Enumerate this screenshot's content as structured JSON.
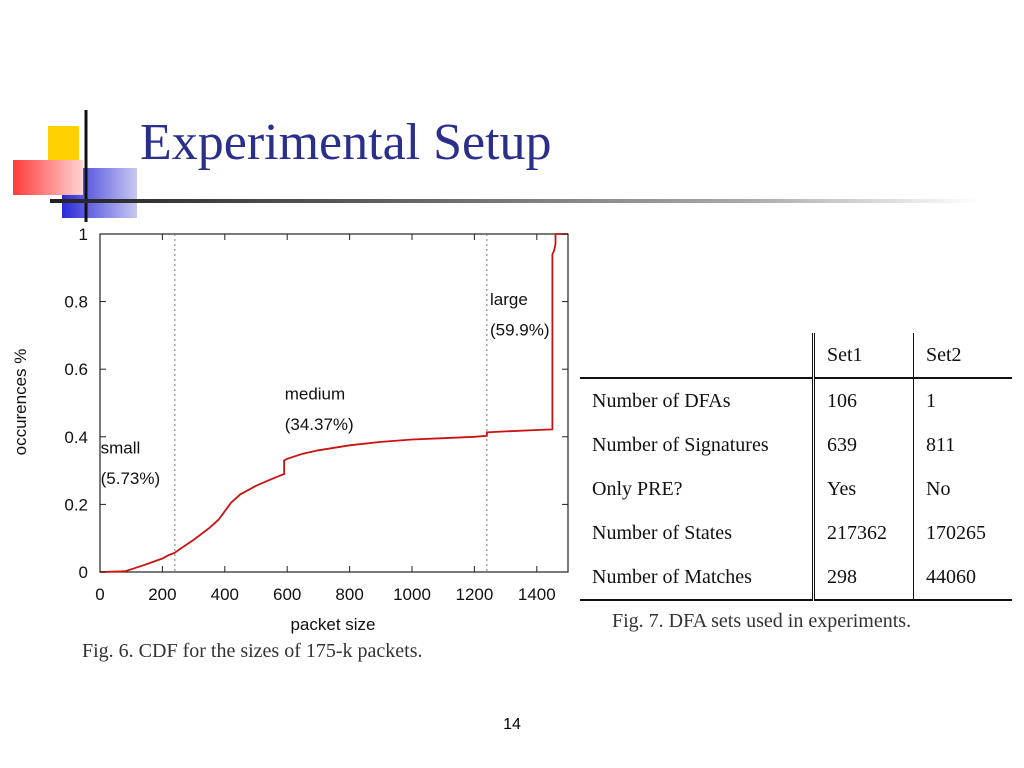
{
  "slide": {
    "title": "Experimental Setup",
    "page_number": "14"
  },
  "colors": {
    "title": "#2b2f8c",
    "cdf_line": "#cc1111",
    "deco_yellow": "#ffd200",
    "deco_red": "#ff3b3b",
    "deco_blue": "#2a2ad8"
  },
  "figure6": {
    "caption": "Fig. 6.   CDF for the sizes of 175-k packets."
  },
  "figure7": {
    "caption": "Fig. 7.   DFA sets used in experiments.",
    "table": {
      "headers": [
        "",
        "Set1",
        "Set2"
      ],
      "rows": [
        [
          "Number of DFAs",
          "106",
          "1"
        ],
        [
          "Number of Signatures",
          "639",
          "811"
        ],
        [
          "Only PRE?",
          "Yes",
          "No"
        ],
        [
          "Number of States",
          "217362",
          "170265"
        ],
        [
          "Number of Matches",
          "298",
          "44060"
        ]
      ]
    }
  },
  "chart_data": {
    "type": "line",
    "xlabel": "packet size",
    "ylabel": "occurences %",
    "xlim": [
      0,
      1500
    ],
    "ylim": [
      0,
      1
    ],
    "xticks": [
      "0",
      "200",
      "400",
      "600",
      "800",
      "1000",
      "1200",
      "1400"
    ],
    "yticks": [
      "0",
      "0.2",
      "0.4",
      "0.6",
      "0.8",
      "1"
    ],
    "grid": false,
    "vlines": [
      240,
      1240
    ],
    "annotations": [
      {
        "text": "small",
        "x": 2,
        "y": 0.35
      },
      {
        "text": "(5.73%)",
        "x": 2,
        "y": 0.26
      },
      {
        "text": "medium",
        "x": 592,
        "y": 0.51
      },
      {
        "text": "(34.37%)",
        "x": 592,
        "y": 0.42
      },
      {
        "text": "large",
        "x": 1250,
        "y": 0.79
      },
      {
        "text": "(59.9%)",
        "x": 1250,
        "y": 0.7
      }
    ],
    "series": [
      {
        "x": [
          0,
          80,
          100,
          140,
          170,
          200,
          220,
          240,
          260,
          300,
          350,
          380,
          400,
          420,
          450,
          500,
          550,
          590,
          590,
          600,
          650,
          700,
          800,
          900,
          1000,
          1100,
          1200,
          1240,
          1240,
          1300,
          1400,
          1450,
          1450,
          1455,
          1460,
          1460,
          1465,
          1470,
          1500
        ],
        "y": [
          0,
          0.002,
          0.008,
          0.02,
          0.03,
          0.04,
          0.05,
          0.057,
          0.07,
          0.095,
          0.13,
          0.155,
          0.18,
          0.205,
          0.23,
          0.255,
          0.275,
          0.29,
          0.33,
          0.335,
          0.35,
          0.36,
          0.375,
          0.385,
          0.392,
          0.396,
          0.4,
          0.403,
          0.413,
          0.416,
          0.42,
          0.422,
          0.94,
          0.95,
          0.97,
          1,
          1,
          1,
          1
        ]
      }
    ]
  }
}
